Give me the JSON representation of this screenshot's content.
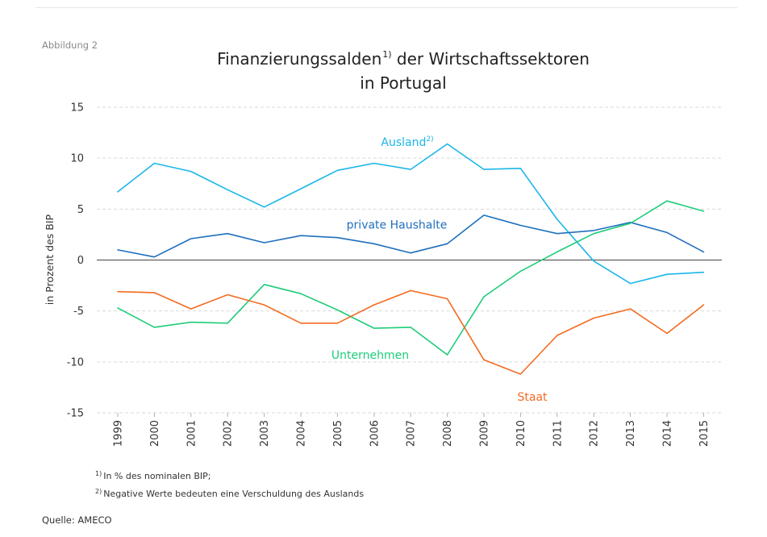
{
  "figure_label": "Abbildung 2",
  "title": {
    "line1_main": "Finanzierungssalden",
    "line1_sup": "1)",
    "line1_rest": " der Wirtschaftssektoren",
    "line2": "in Portugal"
  },
  "footnotes": [
    {
      "marker": "1)",
      "text": "In % des nominalen BIP;"
    },
    {
      "marker": "2)",
      "text": "Negative Werte bedeuten eine Verschuldung des Auslands"
    }
  ],
  "source": "Quelle: AMECO",
  "chart_data": {
    "type": "line",
    "ylabel": "in Prozent des BIP",
    "ylim": [
      -15,
      15
    ],
    "yticks": [
      15,
      10,
      5,
      0,
      -5,
      -10,
      -15
    ],
    "ytick_labels": [
      "15",
      "10",
      "5",
      "0",
      "-5",
      "-10",
      "-15"
    ],
    "grid": "horizontal dashed",
    "categories": [
      "1999",
      "2000",
      "2001",
      "2002",
      "2003",
      "2004",
      "2005",
      "2006",
      "2007",
      "2008",
      "2009",
      "2010",
      "2011",
      "2012",
      "2013",
      "2014",
      "2015"
    ],
    "series": [
      {
        "name": "Ausland",
        "label_sup": "2)",
        "color": "#1ab6e8",
        "values": [
          6.7,
          9.5,
          8.7,
          6.9,
          5.2,
          7.0,
          8.8,
          9.5,
          8.9,
          11.4,
          8.9,
          9.0,
          4.0,
          -0.1,
          -2.3,
          -1.4,
          -1.2
        ]
      },
      {
        "name": "private Haushalte",
        "color": "#1f6fbd",
        "values": [
          1.0,
          0.3,
          2.1,
          2.6,
          1.7,
          2.4,
          2.2,
          1.6,
          0.7,
          1.6,
          4.4,
          3.4,
          2.6,
          2.9,
          3.7,
          2.7,
          0.8
        ]
      },
      {
        "name": "Unternehmen",
        "color": "#1dcc79",
        "values": [
          -4.7,
          -6.6,
          -6.1,
          -6.2,
          -2.4,
          -3.3,
          -4.9,
          -6.7,
          -6.6,
          -9.3,
          -3.6,
          -1.1,
          0.8,
          2.6,
          3.6,
          5.8,
          4.8
        ]
      },
      {
        "name": "Staat",
        "color": "#f26b21",
        "values": [
          -3.1,
          -3.2,
          -4.8,
          -3.4,
          -4.4,
          -6.2,
          -6.2,
          -4.4,
          -3.0,
          -3.8,
          -9.8,
          -11.2,
          -7.4,
          -5.7,
          -4.8,
          -7.2,
          -4.4
        ]
      }
    ]
  }
}
